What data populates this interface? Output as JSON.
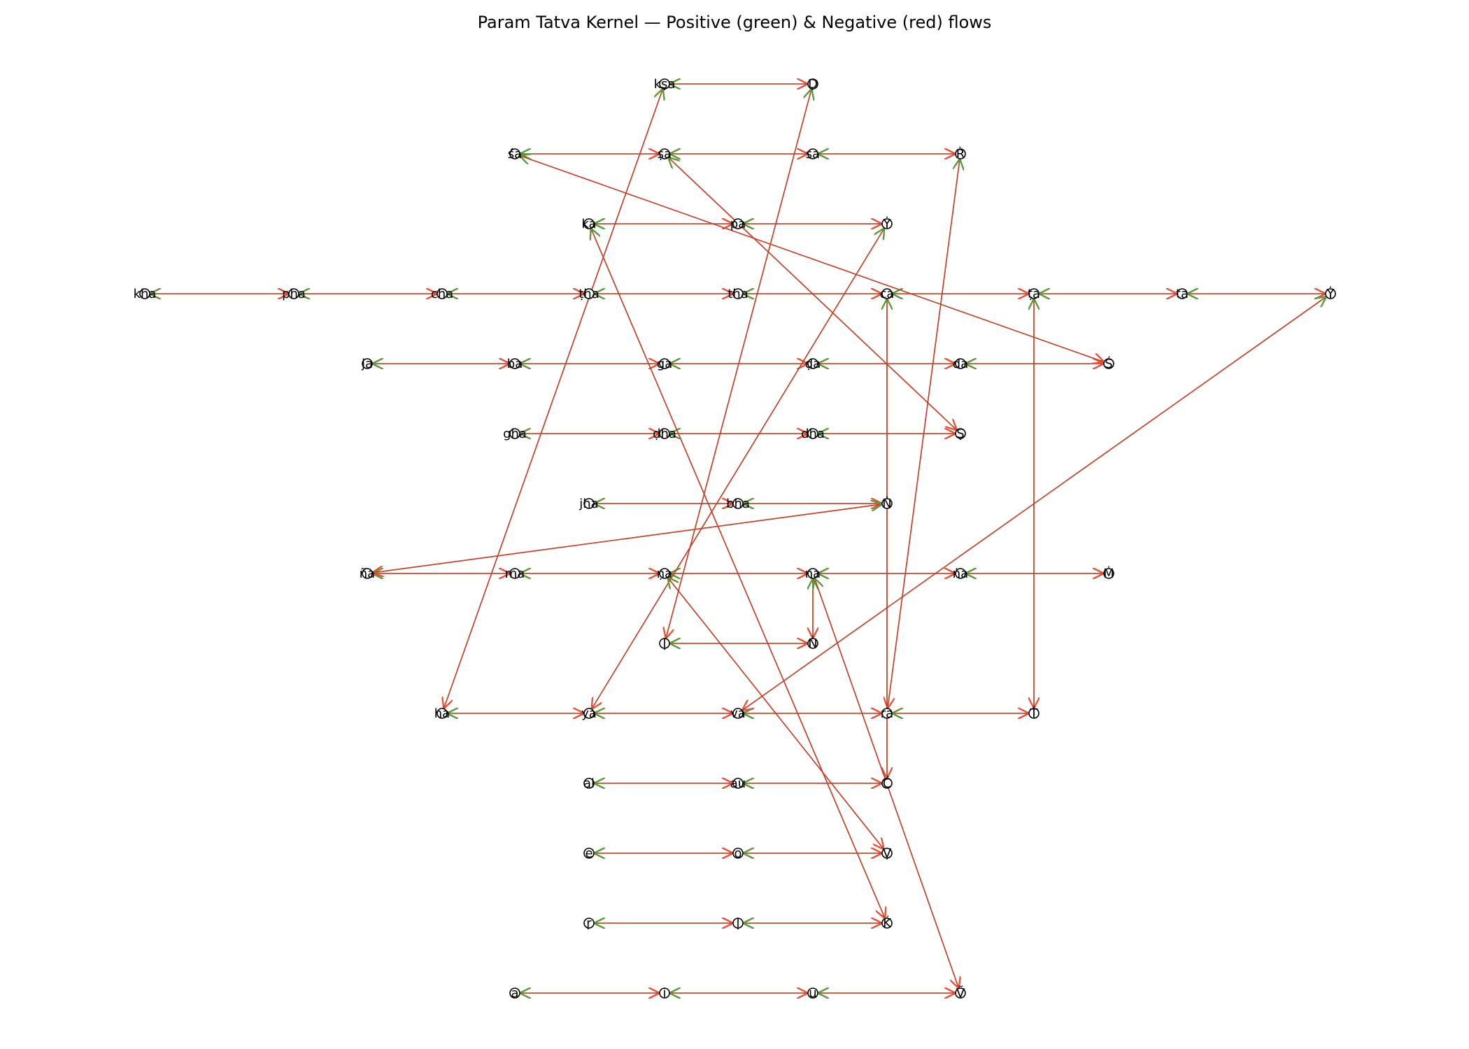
{
  "title": "Param Tatva Kernel — Positive (green) & Negative (red) flows",
  "colors": {
    "positive": "#5a9a3a",
    "negative": "#e5533b",
    "edge": "#c0432a",
    "node_stroke": "#000000"
  },
  "nodes": [
    {
      "id": "kṣa",
      "label": "kṣa"
    },
    {
      "id": "Ḍ",
      "label": "Ḍ"
    },
    {
      "id": "śa",
      "label": "śa"
    },
    {
      "id": "ṣa",
      "label": "ṣa"
    },
    {
      "id": "sa",
      "label": "sa"
    },
    {
      "id": "Ṙ",
      "label": "Ṙ"
    },
    {
      "id": "ka",
      "label": "ka"
    },
    {
      "id": "pa",
      "label": "pa"
    },
    {
      "id": "Ẏ",
      "label": "Ẏ"
    },
    {
      "id": "kha",
      "label": "kha"
    },
    {
      "id": "pha",
      "label": "pha"
    },
    {
      "id": "cha",
      "label": "cha"
    },
    {
      "id": "ṭha",
      "label": "ṭha"
    },
    {
      "id": "tha",
      "label": "tha"
    },
    {
      "id": "ca",
      "label": "ca"
    },
    {
      "id": "ṭa",
      "label": "ṭa"
    },
    {
      "id": "ta",
      "label": "ta"
    },
    {
      "id": "Ẏ2",
      "label": "Ẏ"
    },
    {
      "id": "ja",
      "label": "ja"
    },
    {
      "id": "ba",
      "label": "ba"
    },
    {
      "id": "ga",
      "label": "ga"
    },
    {
      "id": "ḍa",
      "label": "ḍa"
    },
    {
      "id": "da",
      "label": "da"
    },
    {
      "id": "Ś",
      "label": "Ś"
    },
    {
      "id": "gha",
      "label": "gha"
    },
    {
      "id": "ḍha",
      "label": "ḍha"
    },
    {
      "id": "dha",
      "label": "dha"
    },
    {
      "id": "Ṣ",
      "label": "Ṣ"
    },
    {
      "id": "jha",
      "label": "jha"
    },
    {
      "id": "bha",
      "label": "bha"
    },
    {
      "id": "Ṅ",
      "label": "Ṅ"
    },
    {
      "id": "ña",
      "label": "ña"
    },
    {
      "id": "ma",
      "label": "ma"
    },
    {
      "id": "ṇa",
      "label": "ṇa"
    },
    {
      "id": "na",
      "label": "na"
    },
    {
      "id": "ṅa",
      "label": "ṅa"
    },
    {
      "id": "Ṁ",
      "label": "Ṁ"
    },
    {
      "id": "ḷ",
      "label": "ḷ"
    },
    {
      "id": "Ṅ2",
      "label": "Ṅ"
    },
    {
      "id": "ha",
      "label": "ha"
    },
    {
      "id": "ya",
      "label": "ya"
    },
    {
      "id": "va",
      "label": "va"
    },
    {
      "id": "ra",
      "label": "ra"
    },
    {
      "id": "Ṫ",
      "label": "Ṫ"
    },
    {
      "id": "ai",
      "label": "ai"
    },
    {
      "id": "au",
      "label": "au"
    },
    {
      "id": "Ċ",
      "label": "Ċ"
    },
    {
      "id": "e",
      "label": "e"
    },
    {
      "id": "o",
      "label": "o"
    },
    {
      "id": "Ṿ",
      "label": "Ṿ"
    },
    {
      "id": "ṛ",
      "label": "ṛ"
    },
    {
      "id": "ḷ2",
      "label": "ḷ"
    },
    {
      "id": "Ḱ",
      "label": "Ḱ"
    },
    {
      "id": "a",
      "label": "a"
    },
    {
      "id": "i",
      "label": "i"
    },
    {
      "id": "u",
      "label": "u"
    },
    {
      "id": "Ṽ",
      "label": "Ṽ"
    }
  ],
  "edges": [
    [
      "kṣa",
      "Ḍ"
    ],
    [
      "śa",
      "ṣa"
    ],
    [
      "ṣa",
      "sa"
    ],
    [
      "sa",
      "Ṙ"
    ],
    [
      "ka",
      "pa"
    ],
    [
      "pa",
      "Ẏ"
    ],
    [
      "kha",
      "pha"
    ],
    [
      "pha",
      "cha"
    ],
    [
      "cha",
      "ṭha"
    ],
    [
      "ṭha",
      "tha"
    ],
    [
      "tha",
      "ca"
    ],
    [
      "ca",
      "ṭa"
    ],
    [
      "ṭa",
      "ta"
    ],
    [
      "ta",
      "Ẏ2"
    ],
    [
      "ja",
      "ba"
    ],
    [
      "ba",
      "ga"
    ],
    [
      "ga",
      "ḍa"
    ],
    [
      "ḍa",
      "da"
    ],
    [
      "da",
      "Ś"
    ],
    [
      "gha",
      "ḍha"
    ],
    [
      "ḍha",
      "dha"
    ],
    [
      "dha",
      "Ṣ"
    ],
    [
      "jha",
      "bha"
    ],
    [
      "bha",
      "Ṅ"
    ],
    [
      "ña",
      "ma"
    ],
    [
      "ma",
      "ṇa"
    ],
    [
      "ṇa",
      "na"
    ],
    [
      "na",
      "ṅa"
    ],
    [
      "ṅa",
      "Ṁ"
    ],
    [
      "ḷ",
      "Ṅ2"
    ],
    [
      "ha",
      "ya"
    ],
    [
      "ya",
      "va"
    ],
    [
      "va",
      "ra"
    ],
    [
      "ra",
      "Ṫ"
    ],
    [
      "ai",
      "au"
    ],
    [
      "au",
      "Ċ"
    ],
    [
      "e",
      "o"
    ],
    [
      "o",
      "Ṿ"
    ],
    [
      "ṛ",
      "ḷ2"
    ],
    [
      "ḷ2",
      "Ḱ"
    ],
    [
      "a",
      "i"
    ],
    [
      "i",
      "u"
    ],
    [
      "u",
      "Ṽ"
    ],
    [
      "kṣa",
      "ha"
    ],
    [
      "Ḍ",
      "ḷ"
    ],
    [
      "śa",
      "Ś"
    ],
    [
      "ṣa",
      "Ṣ"
    ],
    [
      "ka",
      "Ḱ"
    ],
    [
      "Ẏ",
      "ya"
    ],
    [
      "Ṙ",
      "ra"
    ],
    [
      "ca",
      "Ċ"
    ],
    [
      "ṭa",
      "Ṫ"
    ],
    [
      "Ẏ2",
      "va"
    ],
    [
      "Ṅ",
      "ña"
    ],
    [
      "ṇa",
      "Ṿ"
    ],
    [
      "na",
      "Ṅ2"
    ],
    [
      "na",
      "Ṽ"
    ]
  ]
}
